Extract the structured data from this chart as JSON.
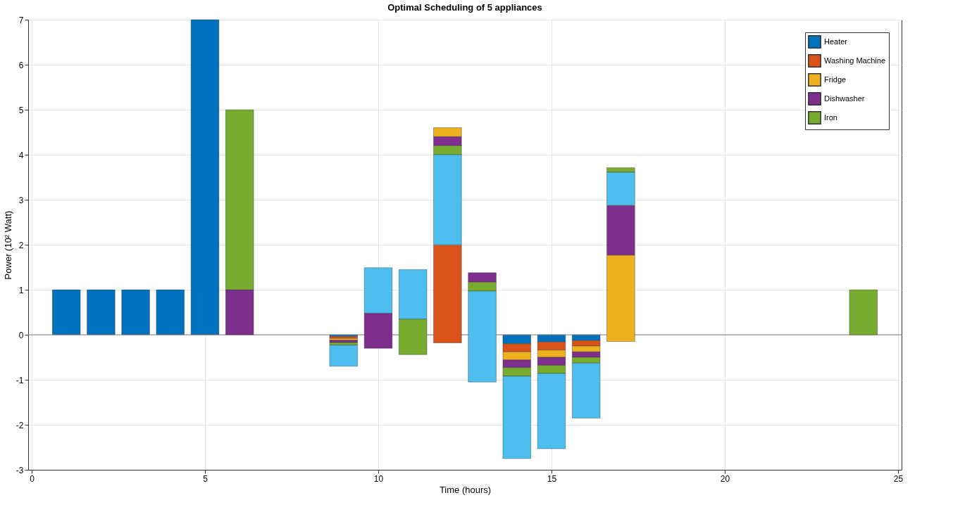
{
  "chart_data": {
    "type": "bar",
    "title": "Optimal Scheduling of 5 appliances",
    "xlabel": "Time (hours)",
    "ylabel": "Power (10² Watt)",
    "x": [
      1,
      2,
      3,
      4,
      5,
      6,
      7,
      8,
      9,
      10,
      11,
      12,
      13,
      14,
      15,
      16,
      17,
      18,
      19,
      20,
      21,
      22,
      23,
      24
    ],
    "series": [
      {
        "name": "Heater",
        "color": "#0072bd",
        "values": [
          1,
          1,
          1,
          1,
          7,
          null,
          null,
          null,
          -0.04,
          null,
          null,
          null,
          null,
          -0.2,
          -0.16,
          -0.13,
          null,
          null,
          null,
          null,
          null,
          null,
          null,
          null
        ],
        "base": [
          0,
          0,
          0,
          0,
          0,
          null,
          null,
          null,
          0,
          null,
          null,
          null,
          null,
          0,
          0,
          0,
          null,
          null,
          null,
          null,
          null,
          null,
          null,
          null
        ]
      },
      {
        "name": "Washing Machine",
        "color": "#d95319",
        "values": [
          null,
          null,
          null,
          null,
          null,
          null,
          null,
          null,
          -0.04,
          null,
          null,
          2.17,
          null,
          -0.18,
          -0.18,
          -0.12,
          null,
          null,
          null,
          null,
          null,
          null,
          null,
          null
        ],
        "base": [
          null,
          null,
          null,
          null,
          null,
          null,
          null,
          null,
          -0.04,
          null,
          null,
          -0.18,
          null,
          -0.2,
          -0.16,
          -0.13,
          null,
          null,
          null,
          null,
          null,
          null,
          null,
          null
        ]
      },
      {
        "name": "Fridge",
        "color": "#edb120",
        "values": [
          null,
          null,
          null,
          null,
          null,
          null,
          null,
          null,
          -0.04,
          null,
          null,
          0.2,
          null,
          -0.18,
          -0.16,
          -0.13,
          1.92,
          null,
          null,
          null,
          null,
          null,
          null,
          null
        ],
        "base": [
          null,
          null,
          null,
          null,
          null,
          null,
          null,
          null,
          -0.08,
          null,
          null,
          4.4,
          null,
          -0.38,
          -0.34,
          -0.25,
          -0.15,
          null,
          null,
          null,
          null,
          null,
          null,
          null
        ]
      },
      {
        "name": "Dishwasher",
        "color": "#7e2f8e",
        "values": [
          null,
          null,
          null,
          null,
          null,
          1,
          null,
          null,
          -0.05,
          0.78,
          null,
          0.2,
          0.21,
          -0.17,
          -0.18,
          -0.12,
          1.1,
          null,
          null,
          null,
          null,
          null,
          null,
          null
        ],
        "base": [
          null,
          null,
          null,
          null,
          null,
          0,
          null,
          null,
          -0.12,
          -0.3,
          null,
          4.2,
          1.17,
          -0.56,
          -0.5,
          -0.38,
          1.77,
          null,
          null,
          null,
          null,
          null,
          null,
          null
        ]
      },
      {
        "name": "Iron",
        "color": "#77ac30",
        "values": [
          null,
          null,
          null,
          null,
          null,
          4,
          null,
          null,
          -0.06,
          null,
          0.79,
          0.2,
          0.2,
          -0.19,
          -0.18,
          -0.13,
          0.1,
          null,
          null,
          null,
          null,
          null,
          null,
          1
        ],
        "base": [
          null,
          null,
          null,
          null,
          null,
          1,
          null,
          null,
          -0.17,
          null,
          -0.44,
          4.0,
          0.97,
          -0.73,
          -0.68,
          -0.5,
          3.61,
          null,
          null,
          null,
          null,
          null,
          null,
          0
        ]
      },
      {
        "color": "#4dbeee",
        "values": [
          null,
          null,
          null,
          null,
          null,
          null,
          null,
          null,
          -0.47,
          1.01,
          1.1,
          2.0,
          2.02,
          -1.83,
          -1.67,
          -1.22,
          0.73,
          null,
          null,
          null,
          null,
          null,
          null,
          null
        ],
        "base": [
          null,
          null,
          null,
          null,
          null,
          null,
          null,
          null,
          -0.23,
          0.48,
          0.35,
          2.0,
          -1.05,
          -0.92,
          -0.86,
          -0.63,
          2.88,
          null,
          null,
          null,
          null,
          null,
          null,
          null
        ]
      }
    ],
    "xlim": [
      0,
      25
    ],
    "xticks": [
      0,
      5,
      10,
      15,
      20,
      25
    ],
    "ylim": [
      -3,
      7
    ],
    "yticks": [
      -3,
      -2,
      -1,
      0,
      1,
      2,
      3,
      4,
      5,
      6,
      7
    ],
    "ref_lines": [
      {
        "axis": "y",
        "value": 0,
        "color": "#808080"
      }
    ],
    "grid": true,
    "legend": "top right"
  }
}
